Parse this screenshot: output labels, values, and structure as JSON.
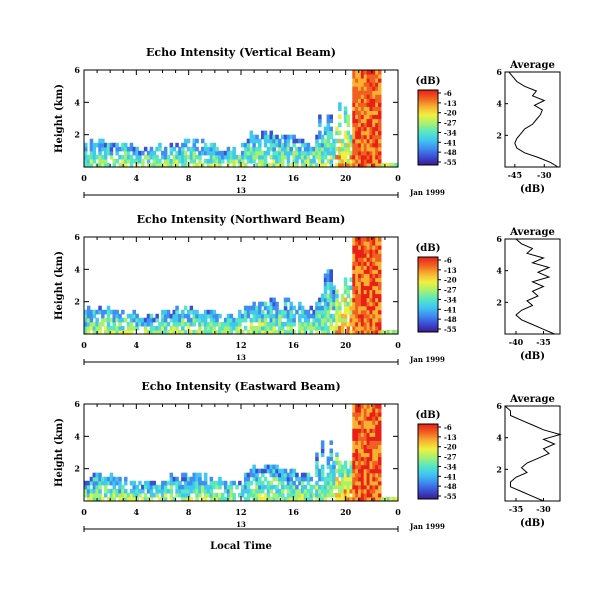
{
  "colors": {
    "scale": [
      "#3c1a8c",
      "#3a4fd6",
      "#3f8ef0",
      "#40c8f0",
      "#58e8c0",
      "#a8f070",
      "#f0f040",
      "#f8b030",
      "#f06020",
      "#e82018"
    ]
  },
  "chart_data": [
    {
      "type": "heatmap",
      "title": "Echo Intensity (Vertical Beam)",
      "ylabel": "Height (km)",
      "y_ticks": [
        "2",
        "4",
        "6"
      ],
      "ylim": [
        0,
        6
      ],
      "x_ticks": [
        "0",
        "4",
        "8",
        "12",
        "16",
        "20",
        "0"
      ],
      "date_ticks": [
        "13"
      ],
      "date_suffix": "Jan 1999",
      "colorbar_title": "(dB)",
      "colorbar_ticks": [
        "-6",
        "-13",
        "-20",
        "-27",
        "-34",
        "-41",
        "-48",
        "-55"
      ],
      "average": {
        "title": "Average",
        "xlabel": "(dB)",
        "x_ticks": [
          "-45",
          "-30"
        ],
        "y_ticks": [
          "2",
          "4",
          "6"
        ],
        "xlim": [
          -50,
          -22
        ],
        "height_km": [
          0.0,
          0.3,
          0.6,
          0.9,
          1.2,
          1.5,
          1.8,
          2.1,
          2.4,
          2.7,
          3.0,
          3.3,
          3.6,
          3.9,
          4.2,
          4.5,
          4.8,
          5.1,
          5.4,
          5.7,
          6.0
        ],
        "db": [
          -23,
          -27,
          -33,
          -40,
          -44,
          -45,
          -44,
          -42,
          -40,
          -36,
          -34,
          -32,
          -31,
          -35,
          -30,
          -36,
          -34,
          -40,
          -44,
          -46,
          -48
        ]
      }
    },
    {
      "type": "heatmap",
      "title": "Echo Intensity (Northward Beam)",
      "ylabel": "Height (km)",
      "y_ticks": [
        "2",
        "4",
        "6"
      ],
      "ylim": [
        0,
        6
      ],
      "x_ticks": [
        "0",
        "4",
        "8",
        "12",
        "16",
        "20",
        "0"
      ],
      "date_ticks": [
        "13"
      ],
      "date_suffix": "Jan 1999",
      "colorbar_title": "(dB)",
      "colorbar_ticks": [
        "-6",
        "-13",
        "-20",
        "-27",
        "-34",
        "-41",
        "-48",
        "-55"
      ],
      "average": {
        "title": "Average",
        "xlabel": "(dB)",
        "x_ticks": [
          "-40",
          "-35"
        ],
        "y_ticks": [
          "2",
          "4",
          "6"
        ],
        "xlim": [
          -42,
          -32
        ],
        "height_km": [
          0.0,
          0.3,
          0.6,
          0.9,
          1.2,
          1.5,
          1.8,
          2.1,
          2.4,
          2.7,
          3.0,
          3.3,
          3.6,
          3.9,
          4.2,
          4.5,
          4.8,
          5.1,
          5.4,
          5.7,
          6.0
        ],
        "db": [
          -33,
          -35,
          -37,
          -39,
          -40,
          -39,
          -37,
          -38,
          -36,
          -37,
          -35,
          -37,
          -34,
          -36,
          -34,
          -37,
          -35,
          -38,
          -37,
          -39,
          -40
        ]
      }
    },
    {
      "type": "heatmap",
      "title": "Echo Intensity (Eastward Beam)",
      "ylabel": "Height (km)",
      "y_ticks": [
        "2",
        "4",
        "6"
      ],
      "ylim": [
        0,
        6
      ],
      "x_ticks": [
        "0",
        "4",
        "8",
        "12",
        "16",
        "20",
        "0"
      ],
      "date_ticks": [
        "13"
      ],
      "date_suffix": "Jan 1999",
      "xlabel": "Local Time",
      "colorbar_title": "(dB)",
      "colorbar_ticks": [
        "-6",
        "-13",
        "-20",
        "-27",
        "-34",
        "-41",
        "-48",
        "-55"
      ],
      "average": {
        "title": "Average",
        "xlabel": "(dB)",
        "x_ticks": [
          "-35",
          "-30"
        ],
        "y_ticks": [
          "2",
          "4",
          "6"
        ],
        "xlim": [
          -37,
          -27
        ],
        "height_km": [
          0.0,
          0.3,
          0.6,
          0.9,
          1.2,
          1.5,
          1.8,
          2.1,
          2.4,
          2.7,
          3.0,
          3.3,
          3.6,
          3.9,
          4.2,
          4.5,
          4.8,
          5.1,
          5.4,
          5.7,
          6.0
        ],
        "db": [
          -30,
          -32,
          -34,
          -36,
          -36,
          -35,
          -33,
          -34,
          -33,
          -31,
          -29,
          -30,
          -28,
          -30,
          -27,
          -30,
          -32,
          -34,
          -36,
          -36,
          -37
        ]
      }
    }
  ]
}
